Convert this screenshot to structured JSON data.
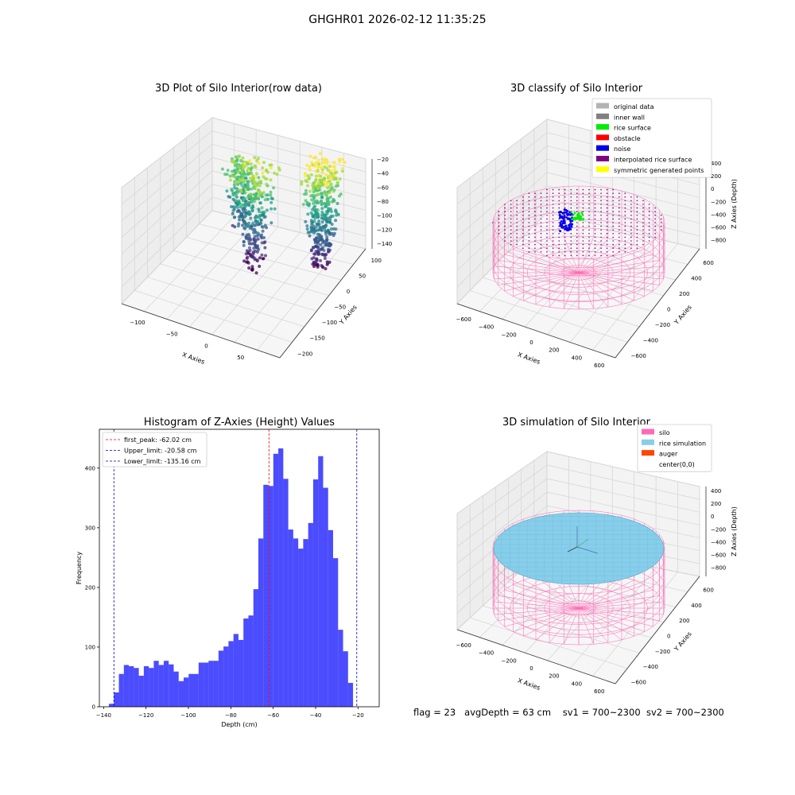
{
  "figure": {
    "suptitle": "GHGHR01 2026-02-12 11:35:25",
    "status": {
      "flag": "flag = 23",
      "avg_depth": "avgDepth = 63 cm",
      "sv1": "sv1 = 700~2300",
      "sv2": "sv2 = 700~2300"
    }
  },
  "chart_data": [
    {
      "type": "scatter",
      "title": "3D Plot of Silo Interior(row data)",
      "xlabel": "X Axies",
      "ylabel": "Y Axies",
      "zlabel": "Z Axies (Depth)",
      "x_ticks": [
        "−100",
        "−50",
        "0",
        "50"
      ],
      "y_ticks": [
        "100",
        "50",
        "0",
        "−50",
        "−100",
        "−150",
        "−200"
      ],
      "z_ticks": [
        "−20",
        "−40",
        "−60",
        "−80",
        "−100",
        "−120",
        "−140"
      ],
      "xlim": [
        -140,
        80
      ],
      "ylim": [
        -210,
        110
      ],
      "zlim": [
        -150,
        -15
      ],
      "colormap": "viridis"
    },
    {
      "type": "scatter",
      "title": "3D classify of Silo Interior",
      "xlabel": "X Axies",
      "ylabel": "Y Axies",
      "zlabel": "Z Axies (Depth)",
      "x_ticks": [
        "−600",
        "−400",
        "−200",
        "0",
        "200",
        "400",
        "600"
      ],
      "y_ticks": [
        "600",
        "400",
        "200",
        "0",
        "−200",
        "−400",
        "−600"
      ],
      "z_ticks": [
        "400",
        "200",
        "0",
        "−200",
        "−400",
        "−600",
        "−800"
      ],
      "legend": [
        {
          "label": "original data",
          "color": "#b3b3b3"
        },
        {
          "label": "inner wall",
          "color": "#808080"
        },
        {
          "label": "rice surface",
          "color": "#00ee00"
        },
        {
          "label": "obstacle",
          "color": "#ff0000"
        },
        {
          "label": "noise",
          "color": "#0000ee"
        },
        {
          "label": "interpolated rice surface",
          "color": "#800080"
        },
        {
          "label": "symmetric generated points",
          "color": "#ffff00"
        }
      ],
      "legend_position": "top-right"
    },
    {
      "type": "bar",
      "title": "Histogram of Z-Axies (Height) Values",
      "xlabel": "Depth (cm)",
      "ylabel": "Frequency",
      "xlim": [
        -142,
        -10
      ],
      "ylim": [
        0,
        465
      ],
      "x_ticks": [
        -140,
        -120,
        -100,
        -80,
        -60,
        -40,
        -20
      ],
      "x_tick_labels": [
        "−140",
        "−120",
        "−100",
        "−80",
        "−60",
        "−40",
        "−20"
      ],
      "y_ticks": [
        0,
        100,
        200,
        300,
        400
      ],
      "bin_start": -137.5,
      "bin_width": 2.35,
      "values": [
        5,
        24,
        55,
        70,
        68,
        65,
        52,
        68,
        65,
        77,
        70,
        77,
        71,
        59,
        43,
        49,
        55,
        55,
        74,
        74,
        77,
        77,
        94,
        101,
        110,
        122,
        112,
        148,
        153,
        197,
        282,
        372,
        370,
        424,
        433,
        382,
        297,
        282,
        265,
        281,
        308,
        381,
        420,
        367,
        296,
        249,
        129,
        93,
        40
      ],
      "bar_color": "#0000ff",
      "bar_opacity": 0.7,
      "lines": [
        {
          "label": "first_peak: -62.02 cm",
          "value": -62.02,
          "color": "#ff0000"
        },
        {
          "label": "Upper_limit: -20.58 cm",
          "value": -20.58,
          "color": "#0000cc"
        },
        {
          "label": "Lower_limit: -135.16 cm",
          "value": -135.16,
          "color": "#0000cc"
        }
      ],
      "legend_position": "top-left"
    },
    {
      "type": "scatter",
      "title": "3D simulation of Silo Interior",
      "xlabel": "X Axies",
      "ylabel": "Y Axies",
      "zlabel": "Z Axies (Depth)",
      "x_ticks": [
        "−600",
        "−400",
        "−200",
        "0",
        "200",
        "400",
        "600"
      ],
      "y_ticks": [
        "600",
        "400",
        "200",
        "0",
        "−200",
        "−400",
        "−600"
      ],
      "z_ticks": [
        "400",
        "200",
        "0",
        "−200",
        "−400",
        "−600",
        "−800"
      ],
      "legend": [
        {
          "label": "silo",
          "color": "#ff69b4"
        },
        {
          "label": "rice simulation",
          "color": "#87ceeb"
        },
        {
          "label": "auger",
          "color": "#ff4500"
        },
        {
          "label": "center(0,0)",
          "color": "#ffffff"
        }
      ],
      "legend_position": "top-right"
    }
  ]
}
